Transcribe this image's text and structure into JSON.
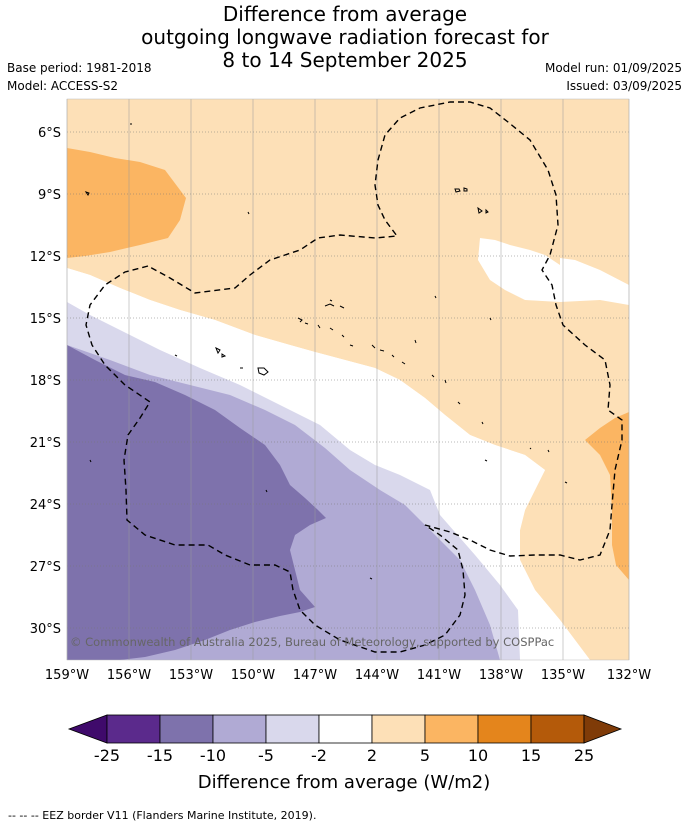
{
  "header": {
    "title_lines": [
      "Difference from average",
      "outgoing longwave radiation forecast for",
      "8 to 14 September 2025"
    ],
    "base_period": "Base period: 1981-2018",
    "model": "Model: ACCESS-S2",
    "model_run": "Model run: 01/09/2025",
    "issued": "Issued: 03/09/2025"
  },
  "map": {
    "lat_labels": [
      "6°S",
      "9°S",
      "12°S",
      "15°S",
      "18°S",
      "21°S",
      "24°S",
      "27°S",
      "30°S"
    ],
    "lon_labels": [
      "159°W",
      "156°W",
      "153°W",
      "150°W",
      "147°W",
      "144°W",
      "141°W",
      "138°W",
      "135°W",
      "132°W"
    ],
    "copyright": "© Commonwealth of Australia 2025, Bureau of Meteorology, supported by COSPPac"
  },
  "colorbar": {
    "ticks": [
      "-25",
      "-15",
      "-10",
      "-5",
      "-2",
      "2",
      "5",
      "10",
      "15",
      "25"
    ],
    "colors": [
      "#3f0a6b",
      "#5b2a8c",
      "#7e72ac",
      "#b0aad4",
      "#d9d8ec",
      "#ffffff",
      "#fde0b7",
      "#fbb562",
      "#e4851c",
      "#b45a0a",
      "#7f3b08"
    ],
    "label": "Difference from average (W/m2)"
  },
  "footer": {
    "eez_legend": "--  --  -- EEZ border V11 (Flanders Marine Institute, 2019)."
  }
}
